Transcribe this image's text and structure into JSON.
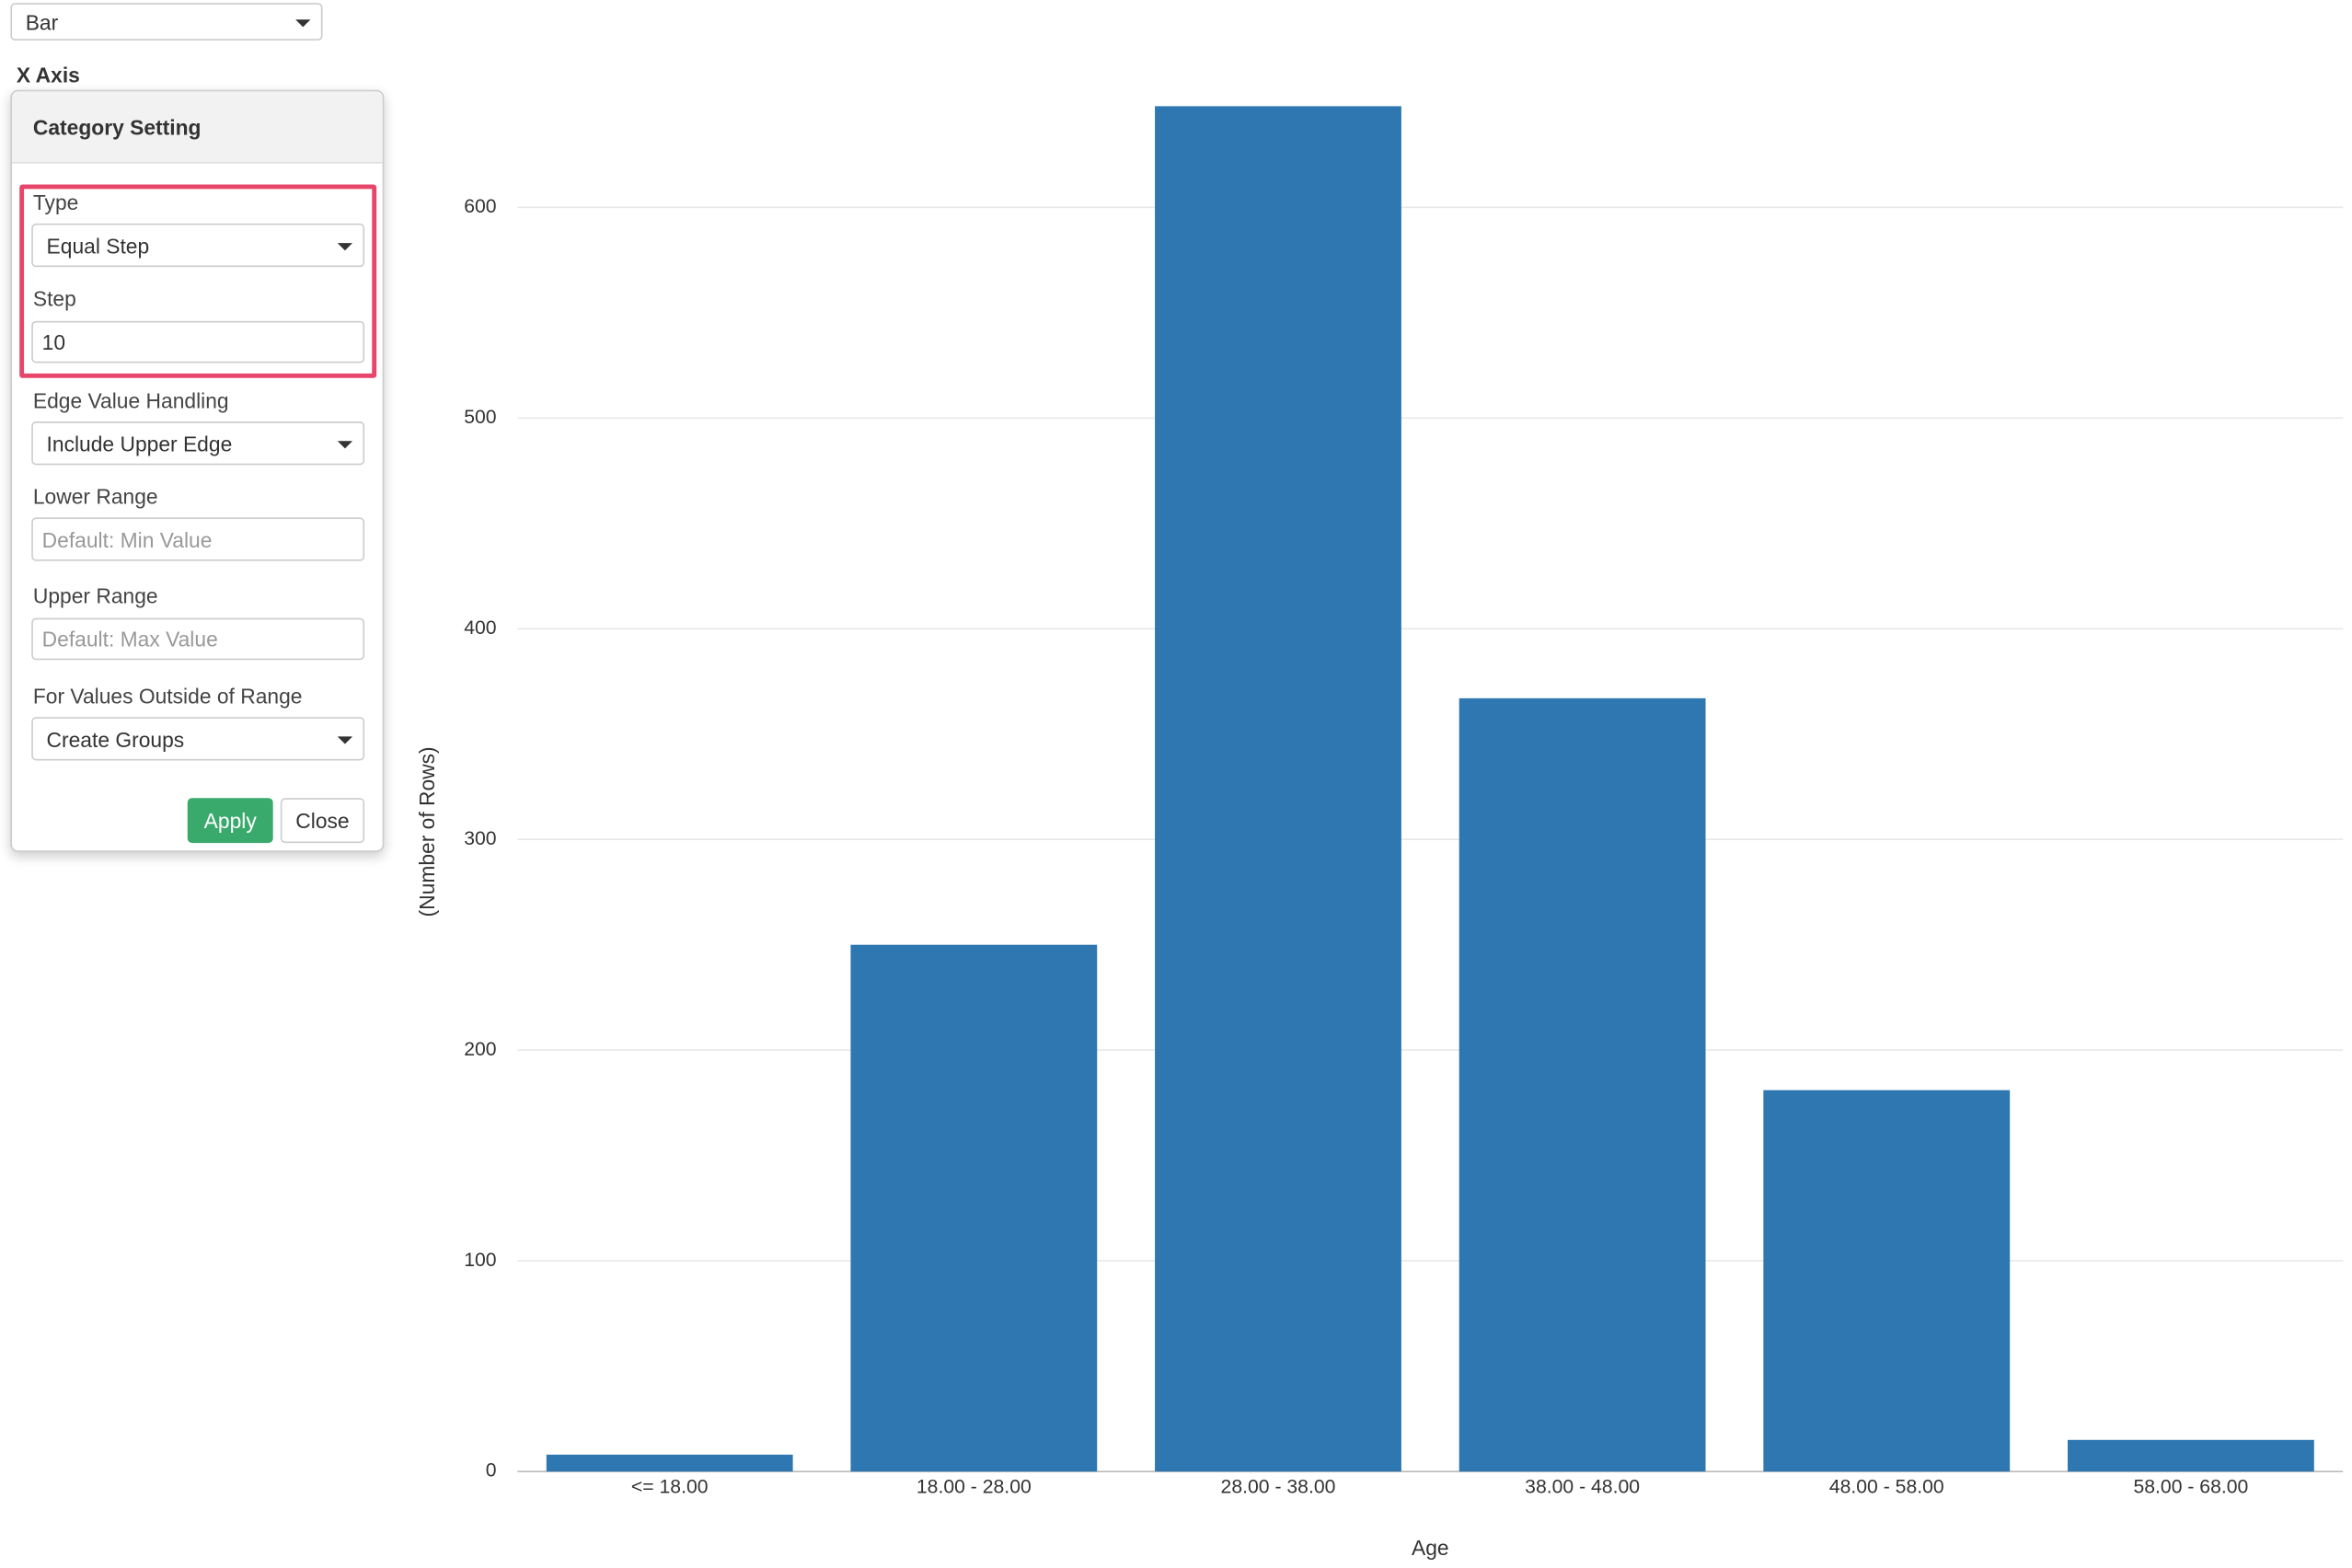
{
  "ui": {
    "chart_type": "Bar",
    "axis_section": "X Axis",
    "panel_title": "Category Setting",
    "type_label": "Type",
    "type_value": "Equal Step",
    "step_label": "Step",
    "step_value": "10",
    "edge_label": "Edge Value Handling",
    "edge_value": "Include Upper Edge",
    "lower_label": "Lower Range",
    "lower_placeholder": "Default: Min Value",
    "upper_label": "Upper Range",
    "upper_placeholder": "Default: Max Value",
    "outside_label": "For Values Outside of Range",
    "outside_value": "Create Groups",
    "apply": "Apply",
    "close": "Close"
  },
  "chart_data": {
    "type": "bar",
    "x_label": "Age",
    "y_label": "(Number of Rows)",
    "categories": [
      "<= 18.00",
      "18.00 - 28.00",
      "28.00 - 38.00",
      "38.00 - 48.00",
      "48.00 - 58.00",
      "58.00 - 68.00"
    ],
    "values": [
      8,
      250,
      648,
      367,
      181,
      15
    ],
    "color": "#2e77b0",
    "ylim": [
      0,
      650
    ],
    "yticks": [
      0,
      100,
      200,
      300,
      400,
      500,
      600
    ],
    "grid": true
  }
}
